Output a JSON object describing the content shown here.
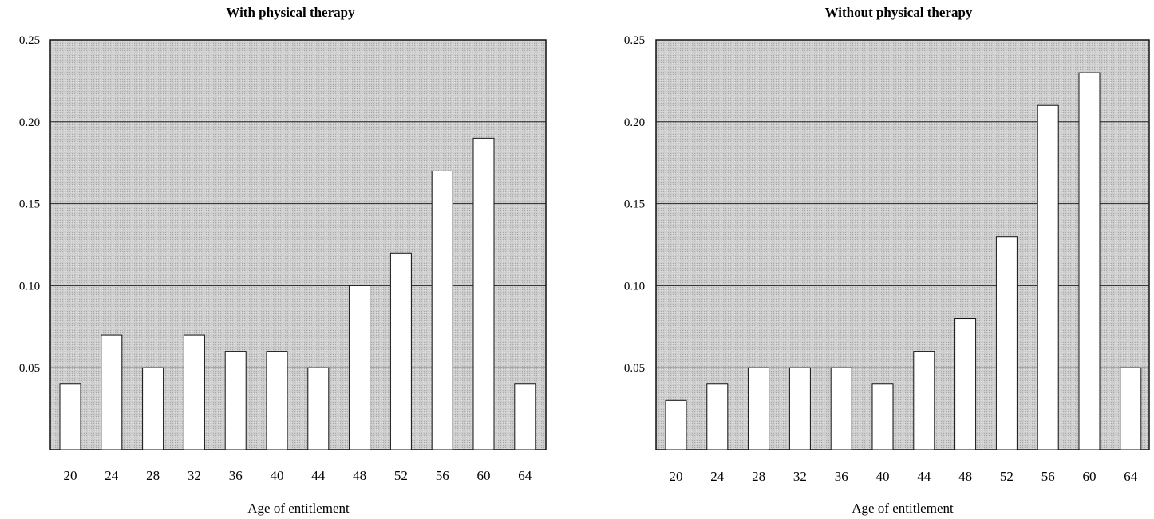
{
  "chart_data": [
    {
      "type": "bar",
      "title": "With physical therapy",
      "xlabel": "Age of entitlement",
      "ylabel": "",
      "ylim": [
        0,
        0.25
      ],
      "yticks": [
        "0.05",
        "0.10",
        "0.15",
        "0.20",
        "0.25"
      ],
      "grid": true,
      "legend": "none",
      "categories": [
        "20",
        "24",
        "28",
        "32",
        "36",
        "40",
        "44",
        "48",
        "52",
        "56",
        "60",
        "64"
      ],
      "values": [
        0.04,
        0.07,
        0.05,
        0.07,
        0.06,
        0.06,
        0.05,
        0.1,
        0.12,
        0.17,
        0.19,
        0.04
      ]
    },
    {
      "type": "bar",
      "title": "Without physical therapy",
      "xlabel": "Age of entitlement",
      "ylabel": "",
      "ylim": [
        0,
        0.25
      ],
      "yticks": [
        "0.05",
        "0.10",
        "0.15",
        "0.20",
        "0.25"
      ],
      "grid": true,
      "legend": "none",
      "categories": [
        "20",
        "24",
        "28",
        "32",
        "36",
        "40",
        "44",
        "48",
        "52",
        "56",
        "60",
        "64"
      ],
      "values": [
        0.03,
        0.04,
        0.05,
        0.05,
        0.05,
        0.04,
        0.06,
        0.08,
        0.13,
        0.21,
        0.23,
        0.05
      ]
    }
  ],
  "colors": {
    "plot_background": "#c9c9c9",
    "bar_fill": "#ffffff",
    "bar_stroke": "#111111",
    "grid": "#222222",
    "frame": "#111111"
  }
}
